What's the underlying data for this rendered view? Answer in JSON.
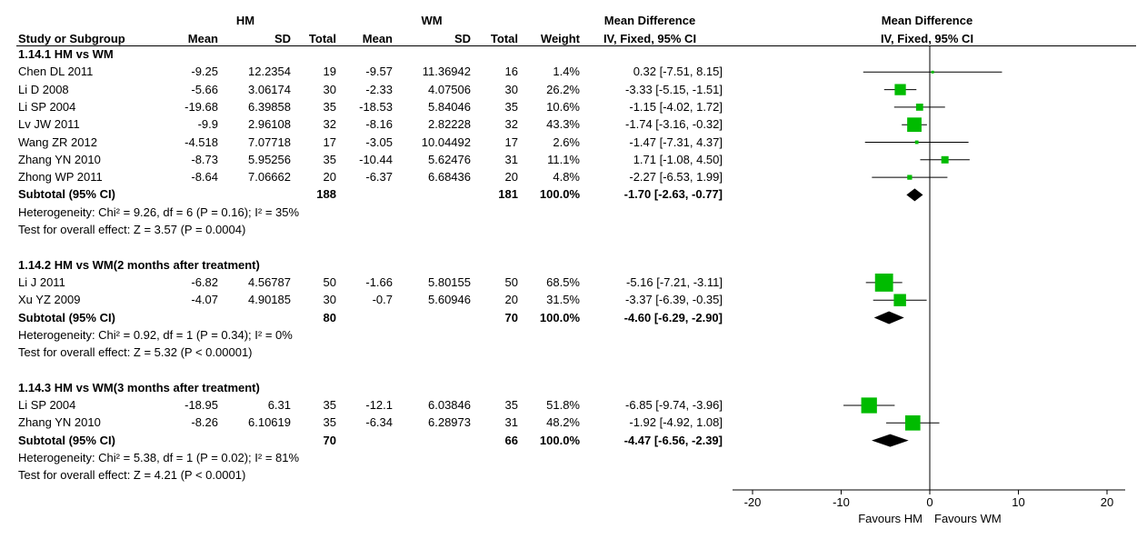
{
  "header": {
    "group_hm": "HM",
    "group_wm": "WM",
    "md_title_table": "Mean Difference",
    "md_method_table": "IV, Fixed, 95% CI",
    "md_title_plot": "Mean Difference",
    "md_method_plot": "IV, Fixed, 95% CI",
    "col_study": "Study or Subgroup",
    "col_mean1": "Mean",
    "col_sd1": "SD",
    "col_total1": "Total",
    "col_mean2": "Mean",
    "col_sd2": "SD",
    "col_total2": "Total",
    "col_weight": "Weight"
  },
  "chart_data": {
    "type": "forest",
    "x_axis": {
      "min": -20,
      "max": 20,
      "ticks": [
        "-20",
        "-10",
        "0",
        "10",
        "20"
      ],
      "tick_values": [
        -20,
        -10,
        0,
        10,
        20
      ],
      "label_left": "Favours HM",
      "label_right": "Favours WM"
    },
    "subgroups": [
      {
        "title": "1.14.1 HM vs WM",
        "studies": [
          {
            "study": "Chen DL 2011",
            "hm_mean": "-9.25",
            "hm_sd": "12.2354",
            "hm_total": "19",
            "wm_mean": "-9.57",
            "wm_sd": "11.36942",
            "wm_total": "16",
            "weight": "1.4%",
            "ci_text": "0.32 [-7.51, 8.15]",
            "md": 0.32,
            "lo": -7.51,
            "hi": 8.15,
            "w": 1.4
          },
          {
            "study": "Li D 2008",
            "hm_mean": "-5.66",
            "hm_sd": "3.06174",
            "hm_total": "30",
            "wm_mean": "-2.33",
            "wm_sd": "4.07506",
            "wm_total": "30",
            "weight": "26.2%",
            "ci_text": "-3.33 [-5.15, -1.51]",
            "md": -3.33,
            "lo": -5.15,
            "hi": -1.51,
            "w": 26.2
          },
          {
            "study": "Li SP 2004",
            "hm_mean": "-19.68",
            "hm_sd": "6.39858",
            "hm_total": "35",
            "wm_mean": "-18.53",
            "wm_sd": "5.84046",
            "wm_total": "35",
            "weight": "10.6%",
            "ci_text": "-1.15 [-4.02, 1.72]",
            "md": -1.15,
            "lo": -4.02,
            "hi": 1.72,
            "w": 10.6
          },
          {
            "study": "Lv JW 2011",
            "hm_mean": "-9.9",
            "hm_sd": "2.96108",
            "hm_total": "32",
            "wm_mean": "-8.16",
            "wm_sd": "2.82228",
            "wm_total": "32",
            "weight": "43.3%",
            "ci_text": "-1.74 [-3.16, -0.32]",
            "md": -1.74,
            "lo": -3.16,
            "hi": -0.32,
            "w": 43.3
          },
          {
            "study": "Wang ZR 2012",
            "hm_mean": "-4.518",
            "hm_sd": "7.07718",
            "hm_total": "17",
            "wm_mean": "-3.05",
            "wm_sd": "10.04492",
            "wm_total": "17",
            "weight": "2.6%",
            "ci_text": "-1.47 [-7.31, 4.37]",
            "md": -1.47,
            "lo": -7.31,
            "hi": 4.37,
            "w": 2.6
          },
          {
            "study": "Zhang YN 2010",
            "hm_mean": "-8.73",
            "hm_sd": "5.95256",
            "hm_total": "35",
            "wm_mean": "-10.44",
            "wm_sd": "5.62476",
            "wm_total": "31",
            "weight": "11.1%",
            "ci_text": "1.71 [-1.08, 4.50]",
            "md": 1.71,
            "lo": -1.08,
            "hi": 4.5,
            "w": 11.1
          },
          {
            "study": "Zhong WP 2011",
            "hm_mean": "-8.64",
            "hm_sd": "7.06662",
            "hm_total": "20",
            "wm_mean": "-6.37",
            "wm_sd": "6.68436",
            "wm_total": "20",
            "weight": "4.8%",
            "ci_text": "-2.27 [-6.53, 1.99]",
            "md": -2.27,
            "lo": -6.53,
            "hi": 1.99,
            "w": 4.8
          }
        ],
        "subtotal": {
          "label": "Subtotal (95% CI)",
          "hm_total": "188",
          "wm_total": "181",
          "weight": "100.0%",
          "ci_text": "-1.70 [-2.63, -0.77]",
          "md": -1.7,
          "lo": -2.63,
          "hi": -0.77
        },
        "heterogeneity": "Heterogeneity: Chi² = 9.26, df = 6 (P = 0.16); I² = 35%",
        "overall": "Test for overall effect: Z = 3.57 (P = 0.0004)"
      },
      {
        "title": "1.14.2 HM vs WM(2 months after treatment)",
        "studies": [
          {
            "study": "Li J 2011",
            "hm_mean": "-6.82",
            "hm_sd": "4.56787",
            "hm_total": "50",
            "wm_mean": "-1.66",
            "wm_sd": "5.80155",
            "wm_total": "50",
            "weight": "68.5%",
            "ci_text": "-5.16 [-7.21, -3.11]",
            "md": -5.16,
            "lo": -7.21,
            "hi": -3.11,
            "w": 68.5
          },
          {
            "study": "Xu YZ 2009",
            "hm_mean": "-4.07",
            "hm_sd": "4.90185",
            "hm_total": "30",
            "wm_mean": "-0.7",
            "wm_sd": "5.60946",
            "wm_total": "20",
            "weight": "31.5%",
            "ci_text": "-3.37 [-6.39, -0.35]",
            "md": -3.37,
            "lo": -6.39,
            "hi": -0.35,
            "w": 31.5
          }
        ],
        "subtotal": {
          "label": "Subtotal (95% CI)",
          "hm_total": "80",
          "wm_total": "70",
          "weight": "100.0%",
          "ci_text": "-4.60 [-6.29, -2.90]",
          "md": -4.6,
          "lo": -6.29,
          "hi": -2.9
        },
        "heterogeneity": "Heterogeneity: Chi² = 0.92, df = 1 (P = 0.34); I² = 0%",
        "overall": "Test for overall effect: Z = 5.32 (P < 0.00001)"
      },
      {
        "title": "1.14.3 HM vs WM(3 months after treatment)",
        "studies": [
          {
            "study": "Li SP 2004",
            "hm_mean": "-18.95",
            "hm_sd": "6.31",
            "hm_total": "35",
            "wm_mean": "-12.1",
            "wm_sd": "6.03846",
            "wm_total": "35",
            "weight": "51.8%",
            "ci_text": "-6.85 [-9.74, -3.96]",
            "md": -6.85,
            "lo": -9.74,
            "hi": -3.96,
            "w": 51.8
          },
          {
            "study": "Zhang YN 2010",
            "hm_mean": "-8.26",
            "hm_sd": "6.10619",
            "hm_total": "35",
            "wm_mean": "-6.34",
            "wm_sd": "6.28973",
            "wm_total": "31",
            "weight": "48.2%",
            "ci_text": "-1.92 [-4.92, 1.08]",
            "md": -1.92,
            "lo": -4.92,
            "hi": 1.08,
            "w": 48.2
          }
        ],
        "subtotal": {
          "label": "Subtotal (95% CI)",
          "hm_total": "70",
          "wm_total": "66",
          "weight": "100.0%",
          "ci_text": "-4.47 [-6.56, -2.39]",
          "md": -4.47,
          "lo": -6.56,
          "hi": -2.39
        },
        "heterogeneity": "Heterogeneity: Chi² = 5.38, df = 1 (P = 0.02); I² = 81%",
        "overall": "Test for overall effect: Z = 4.21 (P < 0.0001)"
      }
    ],
    "colors": {
      "square": "#00bb00",
      "diamond": "#000000",
      "line": "#000000"
    }
  }
}
